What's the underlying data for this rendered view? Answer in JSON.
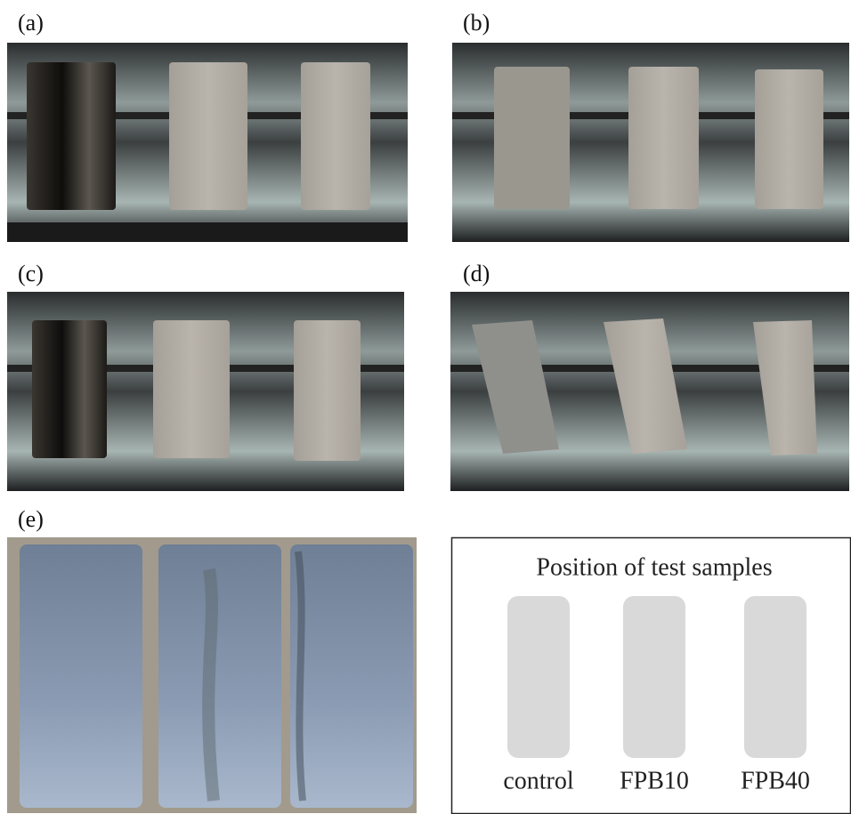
{
  "panels": [
    {
      "label": "(a)"
    },
    {
      "label": "(b)"
    },
    {
      "label": "(c)"
    },
    {
      "label": "(d)"
    },
    {
      "label": "(e)"
    }
  ],
  "legend": {
    "title": "Position of test samples",
    "samples": [
      "control",
      "FPB10",
      "FPB40"
    ]
  }
}
